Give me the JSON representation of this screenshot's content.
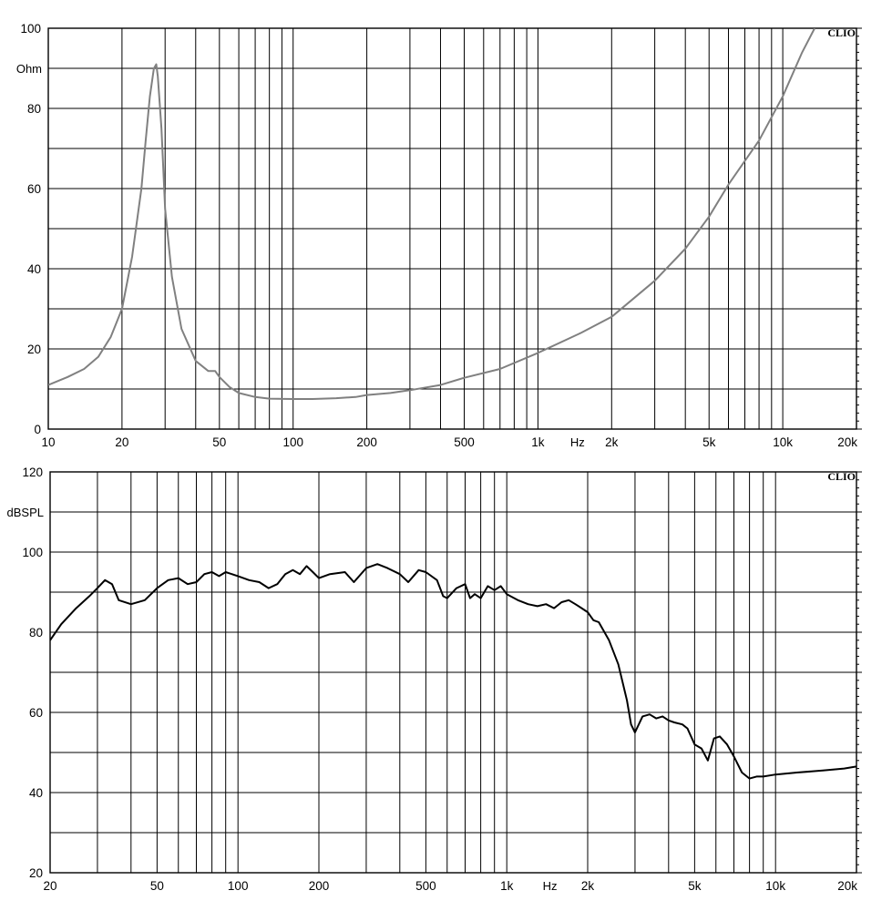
{
  "chart_data": [
    {
      "type": "line",
      "brand": "CLIO",
      "ylabel": "Ohm",
      "xunit": "Hz",
      "xscale": "log",
      "xlim": [
        10,
        20000
      ],
      "ylim": [
        0,
        100
      ],
      "grid": true,
      "yticks": [
        0,
        20,
        40,
        60,
        80,
        100
      ],
      "xtick_labels": [
        {
          "v": 10,
          "t": "10"
        },
        {
          "v": 20,
          "t": "20"
        },
        {
          "v": 50,
          "t": "50"
        },
        {
          "v": 100,
          "t": "100"
        },
        {
          "v": 200,
          "t": "200"
        },
        {
          "v": 500,
          "t": "500"
        },
        {
          "v": 1000,
          "t": "1k"
        },
        {
          "v": 2000,
          "t": "2k"
        },
        {
          "v": 5000,
          "t": "5k"
        },
        {
          "v": 10000,
          "t": "10k"
        },
        {
          "v": 20000,
          "t": "20k"
        }
      ],
      "series": [
        {
          "color": "#808080",
          "x": [
            10,
            12,
            14,
            16,
            18,
            20,
            22,
            24,
            25,
            26,
            27,
            27.6,
            28,
            29,
            30,
            32,
            35,
            40,
            45,
            48,
            50,
            55,
            60,
            70,
            80,
            100,
            120,
            150,
            180,
            200,
            250,
            300,
            400,
            500,
            700,
            1000,
            1500,
            2000,
            3000,
            4000,
            5000,
            6000,
            8000,
            10000,
            12000,
            13500
          ],
          "y": [
            11,
            13,
            15,
            18,
            23,
            30,
            43,
            60,
            72,
            83,
            90,
            91,
            88,
            75,
            55,
            38,
            25,
            17,
            14.5,
            14.5,
            13,
            10.5,
            9,
            8,
            7.6,
            7.5,
            7.5,
            7.7,
            8,
            8.5,
            9,
            9.7,
            11,
            12.8,
            15,
            19,
            24,
            28,
            37,
            45,
            53,
            61,
            72,
            83,
            94,
            100
          ]
        }
      ]
    },
    {
      "type": "line",
      "brand": "CLIO",
      "ylabel": "dBSPL",
      "xunit": "Hz",
      "xscale": "log",
      "xlim": [
        20,
        20000
      ],
      "ylim": [
        20,
        120
      ],
      "grid": true,
      "yticks": [
        20,
        40,
        60,
        80,
        100,
        120
      ],
      "xtick_labels": [
        {
          "v": 20,
          "t": "20"
        },
        {
          "v": 50,
          "t": "50"
        },
        {
          "v": 100,
          "t": "100"
        },
        {
          "v": 200,
          "t": "200"
        },
        {
          "v": 500,
          "t": "500"
        },
        {
          "v": 1000,
          "t": "1k"
        },
        {
          "v": 2000,
          "t": "2k"
        },
        {
          "v": 5000,
          "t": "5k"
        },
        {
          "v": 10000,
          "t": "10k"
        },
        {
          "v": 20000,
          "t": "20k"
        }
      ],
      "series": [
        {
          "color": "#000000",
          "x": [
            20,
            22,
            25,
            28,
            30,
            32,
            34,
            36,
            40,
            45,
            50,
            55,
            60,
            65,
            70,
            75,
            80,
            85,
            90,
            100,
            110,
            120,
            130,
            140,
            150,
            160,
            170,
            180,
            190,
            200,
            220,
            250,
            270,
            300,
            330,
            360,
            400,
            430,
            470,
            500,
            550,
            580,
            600,
            650,
            700,
            730,
            760,
            800,
            850,
            900,
            950,
            1000,
            1100,
            1200,
            1300,
            1400,
            1500,
            1600,
            1700,
            1800,
            1900,
            2000,
            2100,
            2200,
            2400,
            2600,
            2800,
            2900,
            3000,
            3200,
            3400,
            3600,
            3800,
            4000,
            4200,
            4500,
            4700,
            5000,
            5300,
            5600,
            5900,
            6200,
            6600,
            7000,
            7500,
            8000,
            8500,
            9000,
            10000,
            12000,
            15000,
            18000,
            20000
          ],
          "y": [
            78,
            82,
            86,
            89,
            91,
            93,
            92,
            88,
            87,
            88,
            91,
            93,
            93.5,
            92,
            92.5,
            94.5,
            95,
            94,
            95,
            94,
            93,
            92.5,
            91,
            92,
            94.5,
            95.5,
            94.5,
            96.5,
            95,
            93.5,
            94.5,
            95,
            92.5,
            96,
            97,
            96,
            94.5,
            92.5,
            95.5,
            95,
            93,
            89,
            88.5,
            91,
            92,
            88.5,
            89.5,
            88.5,
            91.5,
            90.5,
            91.5,
            89.5,
            88,
            87,
            86.5,
            87,
            86,
            87.5,
            88,
            87,
            86,
            85,
            83,
            82.5,
            78,
            72,
            63,
            57,
            55,
            59,
            59.5,
            58.5,
            59,
            58,
            57.5,
            57,
            56,
            52,
            51,
            48,
            53.5,
            54,
            52,
            49,
            45,
            43.5,
            44,
            44,
            44.5,
            45,
            45.5,
            46,
            46.5
          ]
        }
      ]
    }
  ]
}
